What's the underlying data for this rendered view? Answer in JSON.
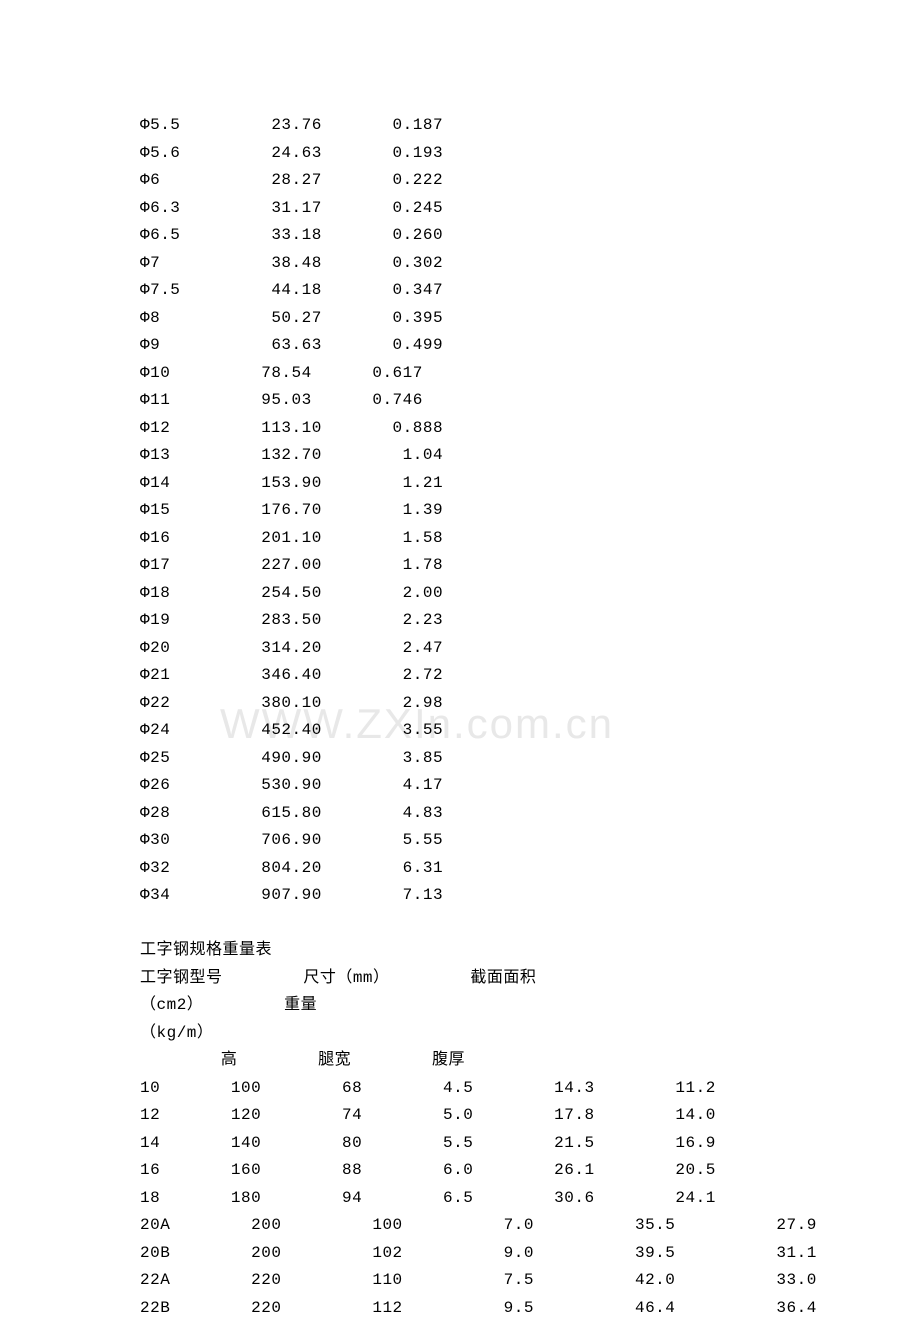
{
  "watermark_text": "WWW.ZXIn.com.cn",
  "rod_table": {
    "rows": [
      {
        "spec": "Φ5.5",
        "area": "23.76",
        "weight": "0.187"
      },
      {
        "spec": "Φ5.6",
        "area": "24.63",
        "weight": "0.193"
      },
      {
        "spec": "Φ6",
        "area": "28.27",
        "weight": "0.222"
      },
      {
        "spec": "Φ6.3",
        "area": "31.17",
        "weight": "0.245"
      },
      {
        "spec": "Φ6.5",
        "area": "33.18",
        "weight": "0.260"
      },
      {
        "spec": "Φ7",
        "area": "38.48",
        "weight": "0.302"
      },
      {
        "spec": "Φ7.5",
        "area": "44.18",
        "weight": "0.347"
      },
      {
        "spec": "Φ8",
        "area": "50.27",
        "weight": "0.395"
      },
      {
        "spec": "Φ9",
        "area": "63.63",
        "weight": "0.499"
      },
      {
        "spec": "Φ10",
        "area": "78.54",
        "weight": "0.617"
      },
      {
        "spec": "Φ11",
        "area": "95.03",
        "weight": "0.746"
      },
      {
        "spec": "Φ12",
        "area": "113.10",
        "weight": "0.888"
      },
      {
        "spec": "Φ13",
        "area": "132.70",
        "weight": "1.04"
      },
      {
        "spec": "Φ14",
        "area": "153.90",
        "weight": "1.21"
      },
      {
        "spec": "Φ15",
        "area": "176.70",
        "weight": "1.39"
      },
      {
        "spec": "Φ16",
        "area": "201.10",
        "weight": "1.58"
      },
      {
        "spec": "Φ17",
        "area": "227.00",
        "weight": "1.78"
      },
      {
        "spec": "Φ18",
        "area": "254.50",
        "weight": "2.00"
      },
      {
        "spec": "Φ19",
        "area": "283.50",
        "weight": "2.23"
      },
      {
        "spec": "Φ20",
        "area": "314.20",
        "weight": "2.47"
      },
      {
        "spec": "Φ21",
        "area": "346.40",
        "weight": "2.72"
      },
      {
        "spec": "Φ22",
        "area": "380.10",
        "weight": "2.98"
      },
      {
        "spec": "Φ24",
        "area": "452.40",
        "weight": "3.55"
      },
      {
        "spec": "Φ25",
        "area": "490.90",
        "weight": "3.85"
      },
      {
        "spec": "Φ26",
        "area": "530.90",
        "weight": "4.17"
      },
      {
        "spec": "Φ28",
        "area": "615.80",
        "weight": "4.83"
      },
      {
        "spec": "Φ30",
        "area": "706.90",
        "weight": "5.55"
      },
      {
        "spec": "Φ32",
        "area": "804.20",
        "weight": "6.31"
      },
      {
        "spec": "Φ34",
        "area": "907.90",
        "weight": "7.13"
      }
    ]
  },
  "ibeam_section": {
    "title": "工字钢规格重量表",
    "header1_model": "工字钢型号",
    "header1_dim": "尺寸（mm）",
    "header1_area": "截面面积",
    "header2_unit1": "（cm2）",
    "header2_weight": "重量",
    "header3_unit2": "（kg/m）",
    "subhead_h": "高",
    "subhead_w": "腿宽",
    "subhead_t": "腹厚",
    "rows": [
      {
        "model": "10",
        "h": "100",
        "w": "68",
        "t": "4.5",
        "area": "14.3",
        "weight": "11.2"
      },
      {
        "model": "12",
        "h": "120",
        "w": "74",
        "t": "5.0",
        "area": "17.8",
        "weight": "14.0"
      },
      {
        "model": "14",
        "h": "140",
        "w": "80",
        "t": "5.5",
        "area": "21.5",
        "weight": "16.9"
      },
      {
        "model": "16",
        "h": "160",
        "w": "88",
        "t": "6.0",
        "area": "26.1",
        "weight": "20.5"
      },
      {
        "model": "18",
        "h": "180",
        "w": "94",
        "t": "6.5",
        "area": "30.6",
        "weight": "24.1"
      },
      {
        "model": "20A",
        "h": "200",
        "w": "100",
        "t": "7.0",
        "area": "35.5",
        "weight": "27.9"
      },
      {
        "model": "20B",
        "h": "200",
        "w": "102",
        "t": "9.0",
        "area": "39.5",
        "weight": "31.1"
      },
      {
        "model": "22A",
        "h": "220",
        "w": "110",
        "t": "7.5",
        "area": "42.0",
        "weight": "33.0"
      },
      {
        "model": "22B",
        "h": "220",
        "w": "112",
        "t": "9.5",
        "area": "46.4",
        "weight": "36.4"
      }
    ]
  }
}
